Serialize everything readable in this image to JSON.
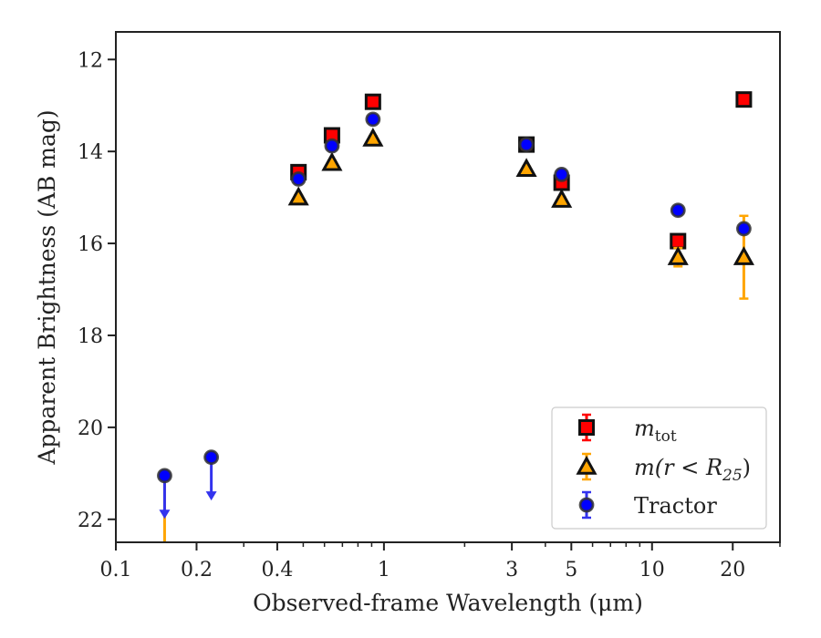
{
  "chart_data": {
    "type": "scatter",
    "title": "",
    "xlabel": "Observed-frame Wavelength (μm)",
    "ylabel": "Apparent Brightness (AB mag)",
    "xscale": "log",
    "xlim": [
      0.1,
      30
    ],
    "ylim": [
      22.5,
      11.4
    ],
    "y_inverted": true,
    "grid": false,
    "legend_position": "bottom-right",
    "x_major_ticks": [
      {
        "value": 0.1,
        "label": "0.1"
      },
      {
        "value": 0.2,
        "label": "0.2"
      },
      {
        "value": 0.4,
        "label": "0.4"
      },
      {
        "value": 1,
        "label": "1"
      },
      {
        "value": 3,
        "label": "3"
      },
      {
        "value": 5,
        "label": "5"
      },
      {
        "value": 10,
        "label": "10"
      },
      {
        "value": 20,
        "label": "20"
      }
    ],
    "x_minor_ticks": [
      0.3,
      0.5,
      0.6,
      0.7,
      0.8,
      0.9,
      2,
      4,
      6,
      7,
      8,
      9,
      30
    ],
    "y_ticks": [
      12,
      14,
      16,
      18,
      20,
      22
    ],
    "series": [
      {
        "name_main": "m",
        "name_sub": "tot",
        "marker": "square",
        "color": "#ff0000",
        "ecolor": "#ff0000",
        "points": [
          {
            "x": 0.48,
            "y": 14.45,
            "err": 0.05
          },
          {
            "x": 0.64,
            "y": 13.65,
            "err": 0.05
          },
          {
            "x": 0.91,
            "y": 12.92,
            "err": 0.05
          },
          {
            "x": 3.4,
            "y": 13.85,
            "err": 0.05
          },
          {
            "x": 4.6,
            "y": 14.68,
            "err": 0.05
          },
          {
            "x": 12.5,
            "y": 15.95,
            "err": 0.05
          },
          {
            "x": 22.0,
            "y": 12.87,
            "err": 0.05
          }
        ]
      },
      {
        "name_main": "m(r < R",
        "name_sub": "25",
        "name_tail": ")",
        "marker": "triangle",
        "color": "#ffa500",
        "ecolor": "#ffa500",
        "points": [
          {
            "x": 0.48,
            "y": 15.0,
            "err": 0.05
          },
          {
            "x": 0.64,
            "y": 14.25,
            "err": 0.05
          },
          {
            "x": 0.91,
            "y": 13.72,
            "err": 0.05
          },
          {
            "x": 3.4,
            "y": 14.38,
            "err": 0.05
          },
          {
            "x": 4.6,
            "y": 15.05,
            "err": 0.05
          },
          {
            "x": 12.5,
            "y": 16.3,
            "err": 0.2
          },
          {
            "x": 22.0,
            "y": 16.3,
            "err": 0.9
          }
        ],
        "limits": [
          {
            "x": 0.152,
            "y": 21.0,
            "to": 22.5
          }
        ]
      },
      {
        "name": "Tractor",
        "marker": "circle",
        "color": "#0000ff",
        "ecolor": "#3333ee",
        "points": [
          {
            "x": 0.48,
            "y": 14.6,
            "err": 0.05
          },
          {
            "x": 0.64,
            "y": 13.88,
            "err": 0.05
          },
          {
            "x": 0.91,
            "y": 13.3,
            "err": 0.05
          },
          {
            "x": 3.4,
            "y": 13.85,
            "err": 0.05
          },
          {
            "x": 4.6,
            "y": 14.5,
            "err": 0.05
          },
          {
            "x": 12.5,
            "y": 15.28,
            "err": 0.05
          },
          {
            "x": 22.0,
            "y": 15.68,
            "err": 0.05
          }
        ],
        "upper_limits": [
          {
            "x": 0.152,
            "y": 21.05,
            "to": 21.95
          },
          {
            "x": 0.227,
            "y": 20.65,
            "to": 21.55
          }
        ]
      }
    ]
  }
}
